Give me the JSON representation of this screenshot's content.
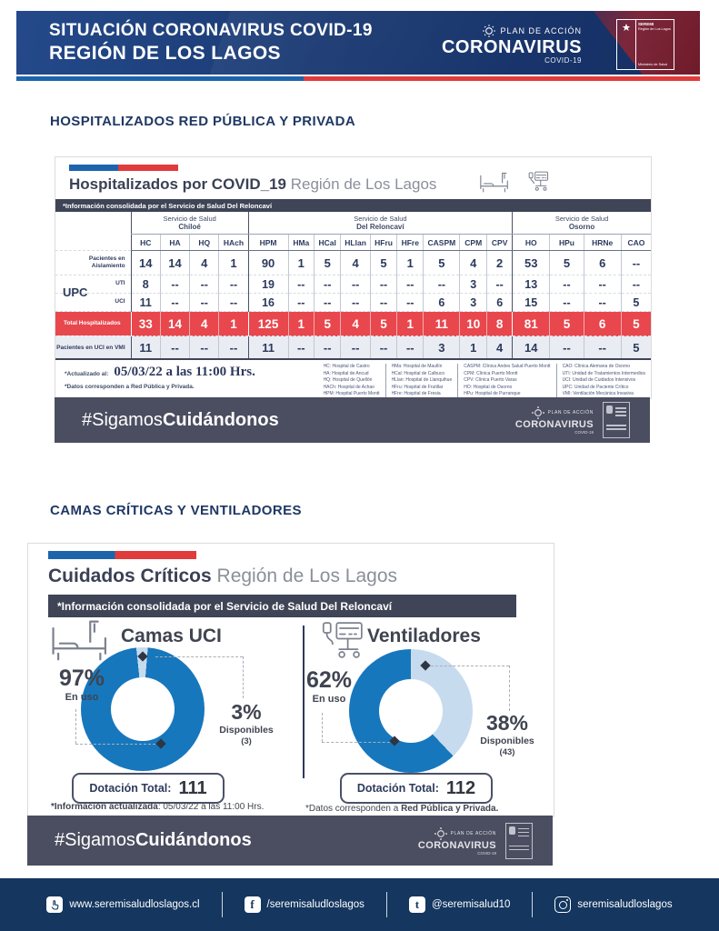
{
  "header": {
    "title1": "SITUACIÓN CORONAVIRUS COVID-19",
    "title2": "REGIÓN DE LOS LAGOS",
    "plan": {
      "pre": "PLAN DE ACCIÓN",
      "main": "CORONAVIRUS",
      "sub": "COVID-19"
    },
    "seremi": {
      "top": "SEREMI",
      "region": "Región de Los Lagos",
      "bottom": "Ministerio de Salud"
    }
  },
  "section1": {
    "heading": "HOSPITALIZADOS RED PÚBLICA Y PRIVADA",
    "card": {
      "title_bold": "Hospitalizados por COVID_19",
      "title_rest": " Región de Los Lagos",
      "info_bar": "*Información consolidada por el Servicio de Salud Del Reloncaví",
      "table": {
        "upc_label": "UPC",
        "groups": [
          {
            "title": "Servicio de Salud",
            "name": "Chiloé",
            "span": 4
          },
          {
            "title": "Servicio de Salud",
            "name": "Del Reloncaví",
            "span": 9
          },
          {
            "title": "Servicio de Salud",
            "name": "Osorno",
            "span": 4
          }
        ],
        "columns": [
          "HC",
          "HA",
          "HQ",
          "HAch",
          "HPM",
          "HMa",
          "HCal",
          "HLlan",
          "HFru",
          "HFre",
          "CASPM",
          "CPM",
          "CPV",
          "HO",
          "HPu",
          "HRNe",
          "CAO"
        ],
        "rows": [
          {
            "label": "Pacientes en Aislamiento",
            "type": "normal",
            "values": [
              "14",
              "14",
              "4",
              "1",
              "90",
              "1",
              "5",
              "4",
              "5",
              "1",
              "5",
              "4",
              "2",
              "53",
              "5",
              "6",
              "--"
            ]
          },
          {
            "label": "UTI",
            "type": "upc",
            "values": [
              "8",
              "--",
              "--",
              "--",
              "19",
              "--",
              "--",
              "--",
              "--",
              "--",
              "--",
              "3",
              "--",
              "13",
              "--",
              "--",
              "--"
            ]
          },
          {
            "label": "UCI",
            "type": "upc",
            "values": [
              "11",
              "--",
              "--",
              "--",
              "16",
              "--",
              "--",
              "--",
              "--",
              "--",
              "6",
              "3",
              "6",
              "15",
              "--",
              "--",
              "5"
            ]
          },
          {
            "label": "Total Hospitalizados",
            "type": "total",
            "values": [
              "33",
              "14",
              "4",
              "1",
              "125",
              "1",
              "5",
              "4",
              "5",
              "1",
              "11",
              "10",
              "8",
              "81",
              "5",
              "6",
              "5"
            ]
          },
          {
            "label": "Pacientes en UCI en VMI",
            "type": "vmi",
            "values": [
              "11",
              "--",
              "--",
              "--",
              "11",
              "--",
              "--",
              "--",
              "--",
              "--",
              "3",
              "1",
              "4",
              "14",
              "--",
              "--",
              "5"
            ]
          }
        ]
      },
      "updated_label": "*Actualizado al:",
      "updated_value": "05/03/22 a las 11:00 Hrs.",
      "data_note": "*Datos corresponden a Red Pública y Privada.",
      "legend": [
        [
          "HC: Hospital de Castro",
          "HA: Hospital de Ancud",
          "HQ: Hospital de Quellón",
          "HACh: Hospital de Achao",
          "HPM: Hospital Puerto Montt"
        ],
        [
          "HMa: Hospital de Maullín",
          "HCal: Hospital de Calbuco",
          "HLlan: Hospital de Llanquihue",
          "HFru: Hospital de Frutillar",
          "HFre: Hospital de Fresia"
        ],
        [
          "CASPM: Clínica Andes Salud Puerto Montt",
          "CPM: Clínica Puerto Montt",
          "CPV: Clínica Puerto Varas",
          "HO: Hospital de Osorno",
          "HPu: Hospital de Purranque",
          "HRNe: Hospital de Río Negro"
        ],
        [
          "CAO: Clínica Alemana de Osorno",
          "UTI: Unidad de Tratamientos Intermedios",
          "UCI: Unidad de Cuidados Intensivos",
          "UPC: Unidad de Paciente Crítico",
          "VMI: Ventilación Mecánica Invasiva"
        ]
      ]
    }
  },
  "banner": {
    "light": "#Sigamos",
    "bold": "Cuidándonos",
    "logo": {
      "pre": "PLAN DE ACCIÓN",
      "main": "CORONAVIRUS",
      "sub": "COVID-19"
    }
  },
  "section2": {
    "heading": "CAMAS CRÍTICAS Y VENTILADORES",
    "card": {
      "title_bold": "Cuidados Críticos",
      "title_rest": " Región de Los Lagos",
      "info_bar": "*Información consolidada por el Servicio de Salud Del Reloncaví",
      "note_left_bold": "*Información actualizada",
      "note_left_rest": ": 05/03/22 a las 11:00 Hrs.",
      "note_right_pre": "*Datos corresponden a ",
      "note_right_bold": "Red Pública y Privada."
    },
    "panels": [
      {
        "title": "Camas UCI",
        "used_pct": "97%",
        "used_label": "En uso",
        "avail_pct": "3%",
        "avail_label": "Disponibles",
        "avail_count": "(3)",
        "total_label": "Dotación Total:",
        "total_value": "111"
      },
      {
        "title": "Ventiladores",
        "used_pct": "62%",
        "used_label": "En uso",
        "avail_pct": "38%",
        "avail_label": "Disponibles",
        "avail_count": "(43)",
        "total_label": "Dotación Total:",
        "total_value": "112"
      }
    ]
  },
  "chart_data": [
    {
      "type": "pie",
      "title": "Camas UCI",
      "labels": [
        "En uso",
        "Disponibles"
      ],
      "values_pct": [
        97,
        3
      ],
      "available_count": 3,
      "dotacion_total": 111,
      "colors": [
        "#1777bd",
        "#c7dbee"
      ],
      "rotation_deg": -6,
      "legend_position": "sides",
      "annotation": "Dotación Total: 111"
    },
    {
      "type": "pie",
      "title": "Ventiladores",
      "labels": [
        "En uso",
        "Disponibles"
      ],
      "values_pct": [
        62,
        38
      ],
      "available_count": 43,
      "dotacion_total": 112,
      "colors": [
        "#1777bd",
        "#c7dbee"
      ],
      "rotation_deg": 0,
      "legend_position": "sides",
      "annotation": "Dotación Total: 112"
    }
  ],
  "footer": {
    "items": [
      {
        "icon": "pointer-icon",
        "text": "www.seremisaludloslagos.cl"
      },
      {
        "icon": "facebook-icon",
        "text": "/seremisaludloslagos"
      },
      {
        "icon": "twitter-icon",
        "text": "@seremisalud10"
      },
      {
        "icon": "instagram-icon",
        "text": "seremisaludloslagos"
      }
    ]
  },
  "colors": {
    "header_navy": "#1b3a73",
    "accent_blue": "#1e64ad",
    "accent_red": "#e03c3c",
    "infobar": "#3f4456",
    "total_row_red": "#e8474d",
    "banner_gray": "#4b4e60",
    "footer_navy": "#14365f",
    "donut_dark": "#1777bd",
    "donut_light": "#c7dbee"
  }
}
